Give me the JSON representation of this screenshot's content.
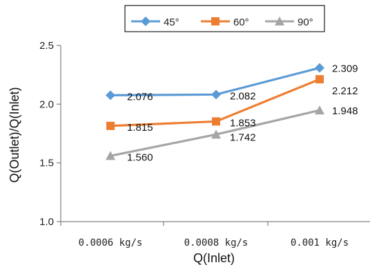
{
  "chart_data": {
    "type": "line",
    "categories": [
      "0.0006 kg/s",
      "0.0008 kg/s",
      "0.001 kg/s"
    ],
    "series": [
      {
        "name": "45°",
        "values": [
          2.076,
          2.082,
          2.309
        ],
        "labels": [
          "2.076",
          "2.082",
          "2.309"
        ],
        "color": "#5B9BD5",
        "marker": "diamond"
      },
      {
        "name": "60°",
        "values": [
          1.815,
          1.853,
          2.212
        ],
        "labels": [
          "1.815",
          "1.853",
          "2.212"
        ],
        "color": "#ED7D31",
        "marker": "square"
      },
      {
        "name": "90°",
        "values": [
          1.56,
          1.742,
          1.948
        ],
        "labels": [
          "1.560",
          "1.742",
          "1.948"
        ],
        "color": "#A5A5A5",
        "marker": "triangle"
      }
    ],
    "xlabel": "Q(Inlet)",
    "ylabel": "Q(Outlet)/Q(Inlet)",
    "ylim": [
      1.0,
      2.5
    ],
    "yticks": [
      "1.0",
      "1.5",
      "2.0",
      "2.5"
    ],
    "grid": false,
    "legend": "top"
  }
}
